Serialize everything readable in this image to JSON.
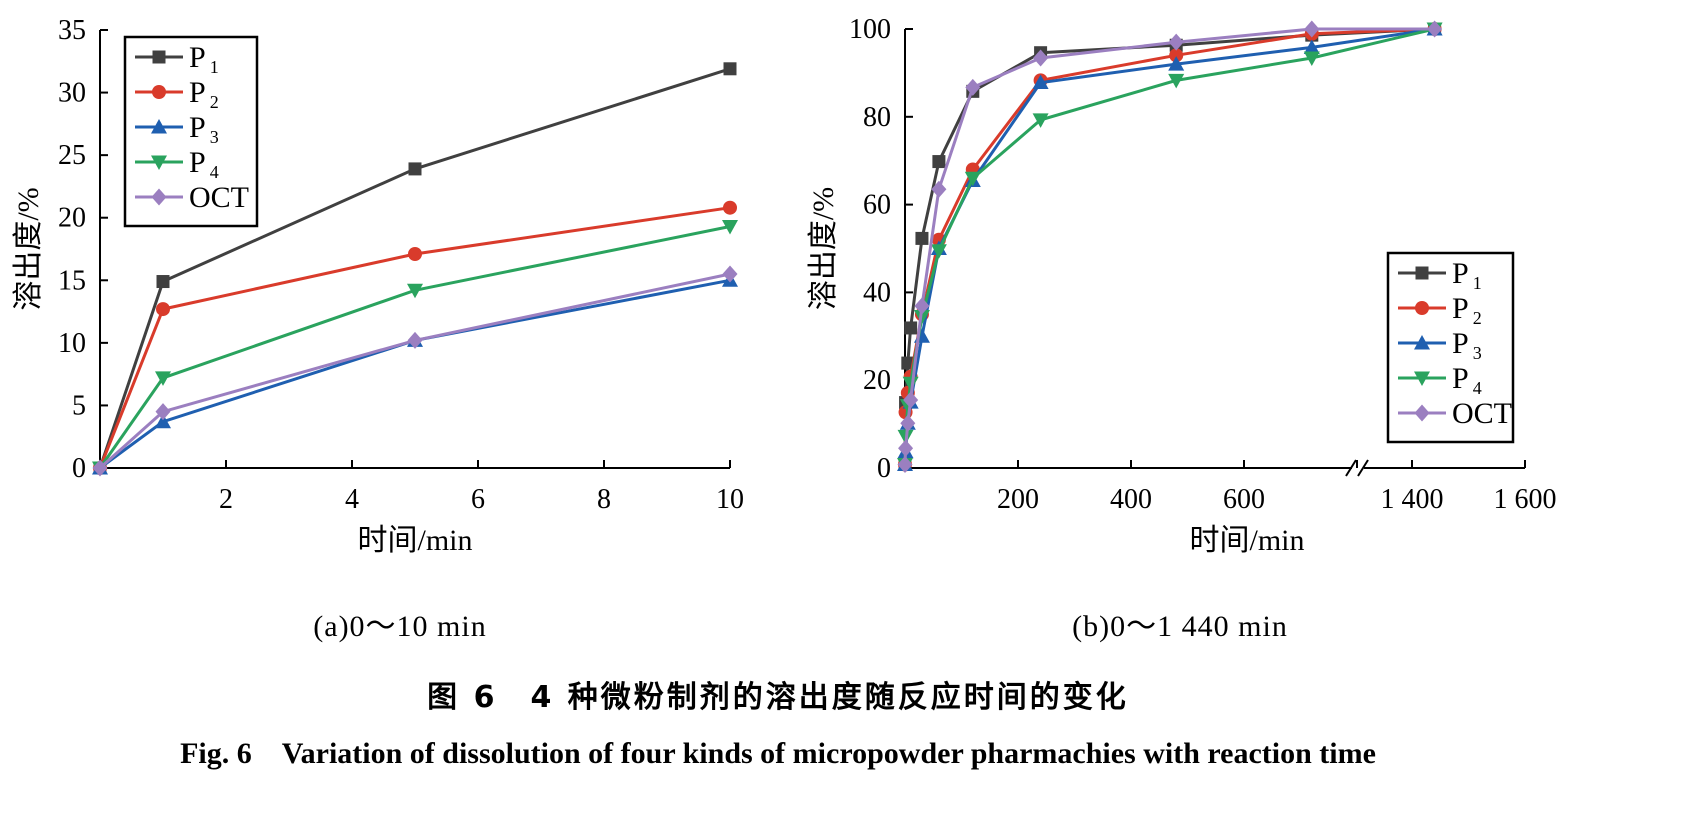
{
  "series_styles": [
    {
      "name": "P1",
      "color": "#404040",
      "marker": "square"
    },
    {
      "name": "P2",
      "color": "#d93b2b",
      "marker": "circle"
    },
    {
      "name": "P3",
      "color": "#1f5fb0",
      "marker": "triangle-up"
    },
    {
      "name": "P4",
      "color": "#2aa35e",
      "marker": "triangle-down"
    },
    {
      "name": "OCT",
      "color": "#9b7fc0",
      "marker": "diamond"
    }
  ],
  "legend_labels": [
    {
      "main": "P",
      "sub": "1"
    },
    {
      "main": "P",
      "sub": "2"
    },
    {
      "main": "P",
      "sub": "3"
    },
    {
      "main": "P",
      "sub": "4"
    },
    {
      "main": "OCT",
      "sub": ""
    }
  ],
  "chart_data": [
    {
      "type": "line",
      "subtitle": "(a)0～10 min",
      "xlabel": "时间/min",
      "ylabel": "溶出度/%",
      "xlim": [
        0,
        10
      ],
      "ylim": [
        0,
        35
      ],
      "xticks": [
        2,
        4,
        6,
        8,
        10
      ],
      "yticks": [
        0,
        5,
        10,
        15,
        20,
        25,
        30,
        35
      ],
      "legend_position": "top-left",
      "x": [
        0,
        1,
        5,
        10
      ],
      "series": [
        {
          "name": "P1",
          "values": [
            0,
            14.9,
            23.9,
            31.9
          ]
        },
        {
          "name": "P2",
          "values": [
            0,
            12.7,
            17.1,
            20.8
          ]
        },
        {
          "name": "P3",
          "values": [
            0,
            3.7,
            10.2,
            15.0
          ]
        },
        {
          "name": "P4",
          "values": [
            0,
            7.2,
            14.2,
            19.3
          ]
        },
        {
          "name": "OCT",
          "values": [
            0,
            4.5,
            10.2,
            15.5
          ]
        }
      ]
    },
    {
      "type": "line",
      "subtitle": "(b)0～1 440 min",
      "xlabel": "时间/min",
      "ylabel": "溶出度/%",
      "xlim": [
        0,
        1600
      ],
      "ylim": [
        0,
        100
      ],
      "axis_break": [
        800,
        1300
      ],
      "xticks": [
        200,
        400,
        600,
        1400,
        1600
      ],
      "xtick_labels": [
        "200",
        "400",
        "600",
        "1 400",
        "1 600"
      ],
      "yticks": [
        0,
        20,
        40,
        60,
        80,
        100
      ],
      "legend_position": "bottom-right",
      "x": [
        0,
        1,
        5,
        10,
        30,
        60,
        120,
        240,
        480,
        720,
        1440
      ],
      "series": [
        {
          "name": "P1",
          "values": [
            0.8,
            14.9,
            23.9,
            31.9,
            52.3,
            69.8,
            85.8,
            94.6,
            96.3,
            98.6,
            100
          ]
        },
        {
          "name": "P2",
          "values": [
            0.8,
            12.7,
            17.1,
            20.8,
            35.0,
            52.0,
            68.0,
            88.3,
            94.0,
            98.9,
            100
          ]
        },
        {
          "name": "P3",
          "values": [
            0.8,
            3.7,
            10.2,
            15.0,
            30.0,
            50.0,
            65.5,
            87.8,
            92.0,
            95.8,
            100
          ]
        },
        {
          "name": "P4",
          "values": [
            0.8,
            7.2,
            14.2,
            19.3,
            34.5,
            49.5,
            66.0,
            79.3,
            88.3,
            93.4,
            100
          ]
        },
        {
          "name": "OCT",
          "values": [
            0.8,
            4.5,
            10.2,
            15.5,
            36.9,
            63.5,
            86.7,
            93.4,
            97.0,
            100,
            100
          ]
        }
      ]
    }
  ],
  "caption": {
    "cn": "图 6　4 种微粉制剂的溶出度随反应时间的变化",
    "en": "Fig. 6　Variation of dissolution of four kinds of micropowder pharmachies with reaction time"
  }
}
